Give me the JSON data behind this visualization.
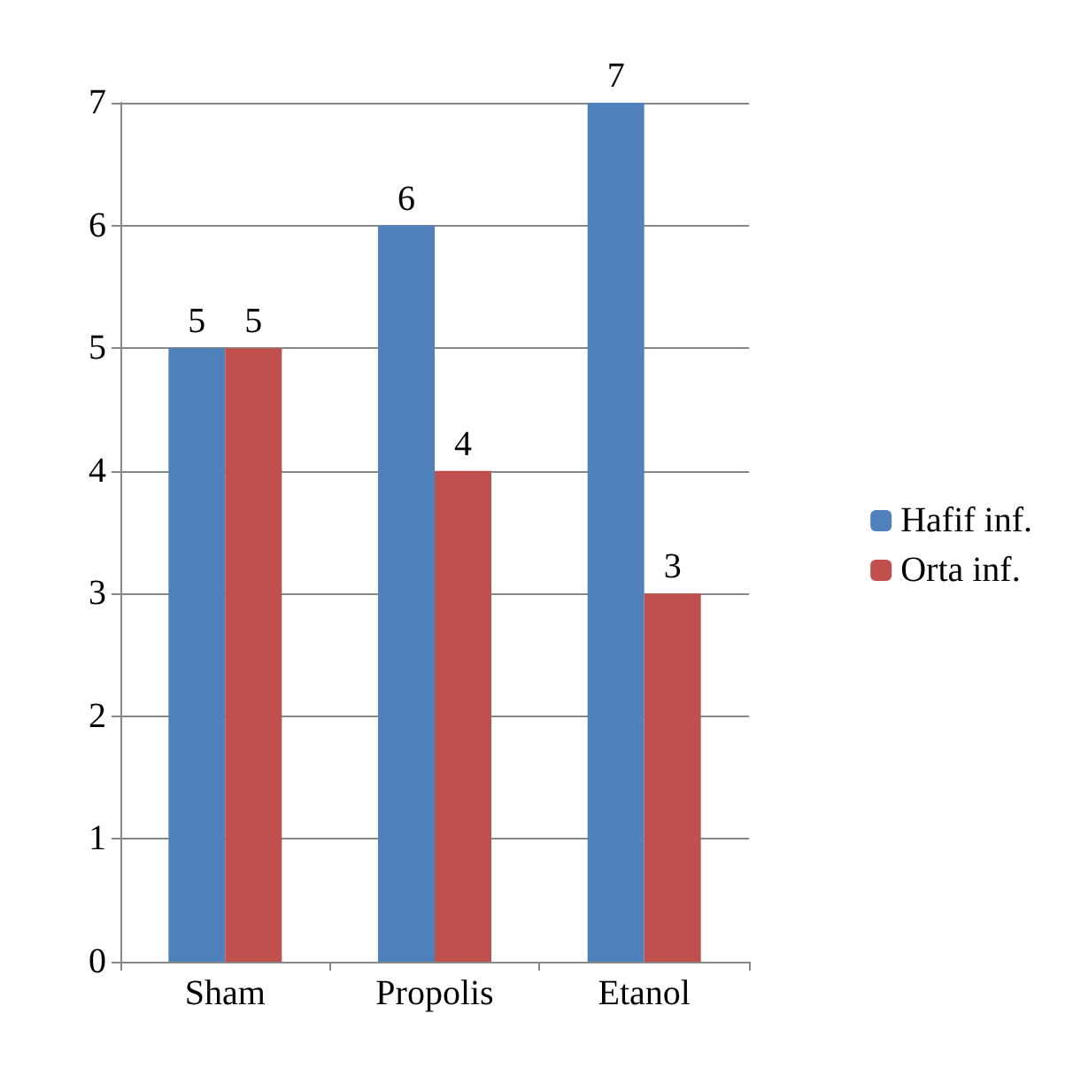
{
  "chart_data": {
    "type": "bar",
    "categories": [
      "Sham",
      "Propolis",
      "Etanol"
    ],
    "series": [
      {
        "name": "Hafif inf.",
        "color": "#4f81bd",
        "values": [
          5,
          6,
          7
        ]
      },
      {
        "name": "Orta inf.",
        "color": "#c0504d",
        "values": [
          5,
          4,
          3
        ]
      }
    ],
    "ylim": [
      0,
      7
    ],
    "yticks": [
      0,
      1,
      2,
      3,
      4,
      5,
      6,
      7
    ],
    "grid": "y",
    "legend": "right",
    "data_labels": true
  }
}
